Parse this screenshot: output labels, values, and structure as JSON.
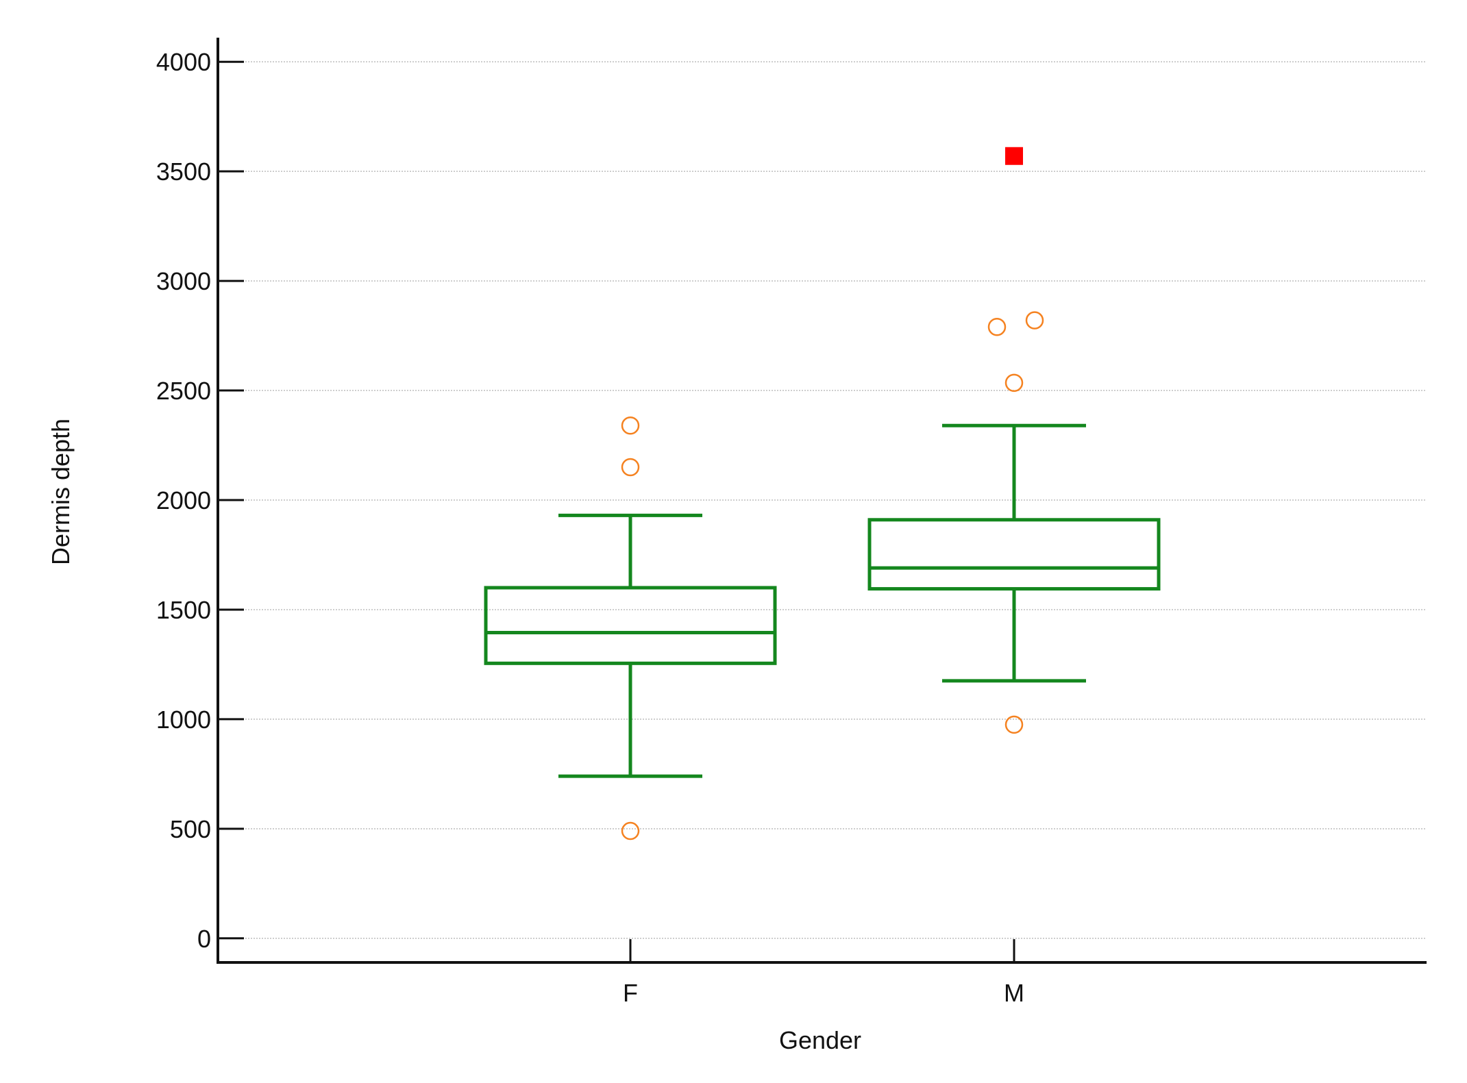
{
  "chart_data": {
    "type": "box",
    "title": "",
    "xlabel": "Gender",
    "ylabel": "Dermis depth",
    "ylim": [
      -110,
      4110
    ],
    "yticks": [
      0,
      500,
      1000,
      1500,
      2000,
      2500,
      3000,
      3500,
      4000
    ],
    "grid": true,
    "categories": [
      "F",
      "M"
    ],
    "boxes": [
      {
        "category": "F",
        "whisker_low": 740,
        "q1": 1255,
        "median": 1395,
        "q3": 1600,
        "whisker_high": 1930,
        "outliers": [
          {
            "value": 2340,
            "offset": 0
          },
          {
            "value": 2150,
            "offset": 0
          },
          {
            "value": 490,
            "offset": 0
          }
        ],
        "far_outliers": []
      },
      {
        "category": "M",
        "whisker_low": 1175,
        "q1": 1595,
        "median": 1690,
        "q3": 1910,
        "whisker_high": 2340,
        "outliers": [
          {
            "value": 2820,
            "offset": 0.03
          },
          {
            "value": 2790,
            "offset": -0.025
          },
          {
            "value": 2535,
            "offset": 0
          },
          {
            "value": 975,
            "offset": 0
          }
        ],
        "far_outliers": [
          {
            "value": 3570,
            "offset": 0
          }
        ]
      }
    ],
    "colors": {
      "box": "#14871e",
      "outlier": "#f58220",
      "far_outlier": "#ff0000",
      "axis": "#111111",
      "grid": "#bdbdbd"
    }
  }
}
